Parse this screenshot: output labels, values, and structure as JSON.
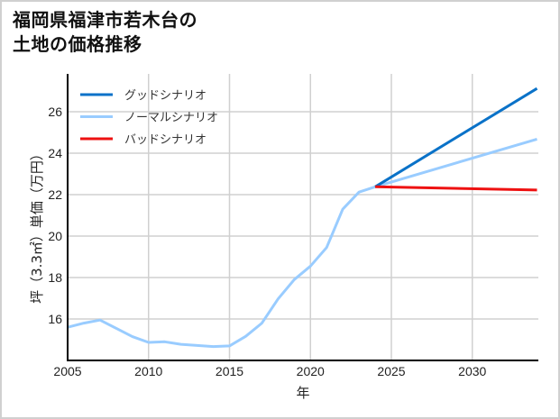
{
  "title": {
    "line1": "福岡県福津市若木台の",
    "line2": "土地の価格推移"
  },
  "legend": [
    {
      "label": "グッドシナリオ",
      "color": "#0a72c8"
    },
    {
      "label": "ノーマルシナリオ",
      "color": "#99ccff"
    },
    {
      "label": "バッドシナリオ",
      "color": "#ee1111"
    }
  ],
  "chart_data": {
    "type": "line",
    "title": "福岡県福津市若木台の土地の価格推移",
    "xlabel": "年",
    "ylabel": "坪（3.3㎡）単価（万円）",
    "xlim": [
      2005,
      2034
    ],
    "ylim": [
      14.2,
      27.6
    ],
    "xticks": [
      2005,
      2010,
      2015,
      2020,
      2025,
      2030
    ],
    "yticks": [
      16,
      18,
      20,
      22,
      24,
      26
    ],
    "grid": true,
    "legend_position": "upper left",
    "series": [
      {
        "name": "ノーマルシナリオ",
        "color": "#99ccff",
        "x": [
          2005,
          2006,
          2007,
          2008,
          2009,
          2010,
          2011,
          2012,
          2013,
          2014,
          2015,
          2016,
          2017,
          2018,
          2019,
          2020,
          2021,
          2022,
          2023,
          2024,
          2034
        ],
        "y": [
          15.6,
          15.8,
          15.95,
          15.55,
          15.15,
          14.87,
          14.9,
          14.78,
          14.72,
          14.67,
          14.7,
          15.16,
          15.8,
          16.97,
          17.9,
          18.55,
          19.45,
          21.3,
          22.12,
          22.38,
          24.68
        ]
      },
      {
        "name": "グッドシナリオ",
        "color": "#0a72c8",
        "x": [
          2024,
          2034
        ],
        "y": [
          22.38,
          27.12
        ]
      },
      {
        "name": "バッドシナリオ",
        "color": "#ee1111",
        "x": [
          2024,
          2034
        ],
        "y": [
          22.38,
          22.22
        ]
      }
    ]
  }
}
